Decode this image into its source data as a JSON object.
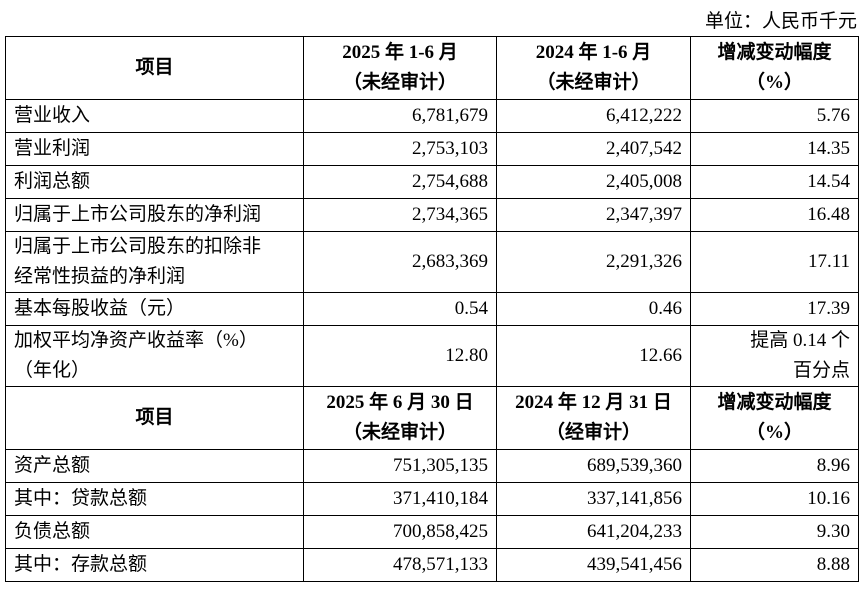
{
  "unit": "单位：人民币千元",
  "sections": [
    {
      "header": [
        [
          "项目"
        ],
        [
          "2025 年 1-6 月",
          "（未经审计）"
        ],
        [
          "2024 年 1-6 月",
          "（未经审计）"
        ],
        [
          "增减变动幅度",
          "（%）"
        ]
      ],
      "rows": [
        [
          "营业收入",
          "6,781,679",
          "6,412,222",
          "5.76"
        ],
        [
          "营业利润",
          "2,753,103",
          "2,407,542",
          "14.35"
        ],
        [
          "利润总额",
          "2,754,688",
          "2,405,008",
          "14.54"
        ],
        [
          "归属于上市公司股东的净利润",
          "2,734,365",
          "2,347,397",
          "16.48"
        ],
        [
          [
            "归属于上市公司股东的扣除非",
            "经常性损益的净利润"
          ],
          "2,683,369",
          "2,291,326",
          "17.11"
        ],
        [
          "基本每股收益（元）",
          "0.54",
          "0.46",
          "17.39"
        ],
        [
          [
            "加权平均净资产收益率（%）",
            "（年化）"
          ],
          "12.80",
          "12.66",
          [
            "提高 0.14 个",
            "百分点"
          ]
        ]
      ]
    },
    {
      "header": [
        [
          "项目"
        ],
        [
          "2025 年 6 月 30 日",
          "（未经审计）"
        ],
        [
          "2024 年 12 月 31 日",
          "（经审计）"
        ],
        [
          "增减变动幅度",
          "（%）"
        ]
      ],
      "rows": [
        [
          "资产总额",
          "751,305,135",
          "689,539,360",
          "8.96"
        ],
        [
          "其中：贷款总额",
          "371,410,184",
          "337,141,856",
          "10.16"
        ],
        [
          "负债总额",
          "700,858,425",
          "641,204,233",
          "9.30"
        ],
        [
          "其中：存款总额",
          "478,571,133",
          "439,541,456",
          "8.88"
        ]
      ]
    }
  ]
}
